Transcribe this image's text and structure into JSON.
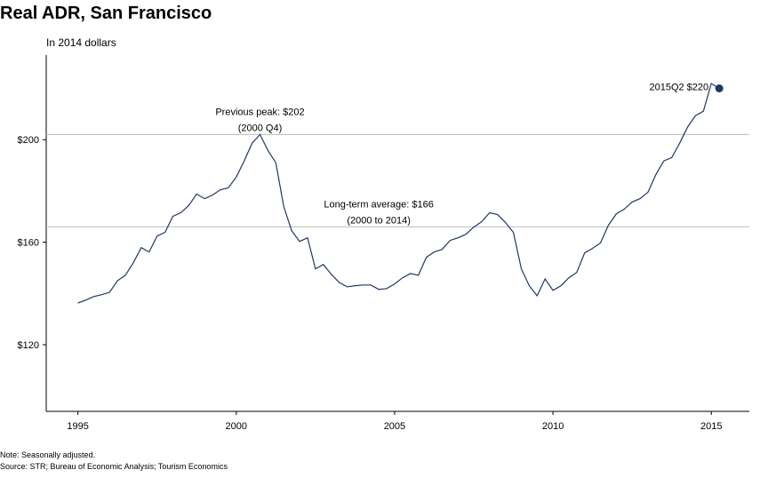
{
  "chart_data": {
    "type": "line",
    "title": "Real ADR, San Francisco",
    "subtitle": "In 2014 dollars",
    "notes": [
      "Note: Seasonally adjusted.",
      "Source: STR; Bureau of Economic Analysis; Tourism Economics"
    ],
    "x": [
      1995,
      1995.25,
      1995.5,
      1995.75,
      1996,
      1996.25,
      1996.5,
      1996.75,
      1997,
      1997.25,
      1997.5,
      1997.75,
      1998,
      1998.25,
      1998.5,
      1998.75,
      1999,
      1999.25,
      1999.5,
      1999.75,
      2000,
      2000.25,
      2000.5,
      2000.75,
      2001,
      2001.25,
      2001.5,
      2001.75,
      2002,
      2002.25,
      2002.5,
      2002.75,
      2003,
      2003.25,
      2003.5,
      2003.75,
      2004,
      2004.25,
      2004.5,
      2004.75,
      2005,
      2005.25,
      2005.5,
      2005.75,
      2006,
      2006.25,
      2006.5,
      2006.75,
      2007,
      2007.25,
      2007.5,
      2007.75,
      2008,
      2008.25,
      2008.5,
      2008.75,
      2009,
      2009.25,
      2009.5,
      2009.75,
      2010,
      2010.25,
      2010.5,
      2010.75,
      2011,
      2011.25,
      2011.5,
      2011.75,
      2012,
      2012.25,
      2012.5,
      2012.75,
      2013,
      2013.25,
      2013.5,
      2013.75,
      2014,
      2014.25,
      2014.5,
      2014.75,
      2015,
      2015.25
    ],
    "series": [
      {
        "name": "Real ADR",
        "color": "#1f3864",
        "values": [
          136.3,
          137.4,
          138.8,
          139.5,
          140.5,
          145,
          147.1,
          152,
          157.9,
          156.2,
          162.4,
          163.8,
          170.1,
          171.5,
          174.3,
          178.8,
          177,
          178.4,
          180.5,
          181.2,
          185.4,
          191.7,
          198.6,
          202,
          195.8,
          191,
          173.9,
          164.5,
          160.3,
          161.7,
          149.6,
          151.3,
          147.5,
          144.3,
          142.6,
          143,
          143.3,
          143.3,
          141.6,
          141.9,
          143.7,
          146.1,
          147.8,
          147.1,
          154.1,
          156.2,
          157.2,
          160.7,
          161.7,
          163.1,
          165.9,
          168,
          171.5,
          170.8,
          167.7,
          163.8,
          149.6,
          143,
          139.1,
          145.7,
          141.2,
          143,
          146.1,
          148.2,
          155.8,
          157.6,
          159.7,
          166.6,
          171.1,
          172.9,
          175.7,
          177,
          179.5,
          186.4,
          191.7,
          193,
          198.6,
          204.9,
          209.4,
          211.1,
          221.9,
          220
        ]
      }
    ],
    "highlight_last": true,
    "xlim": [
      1994,
      2016.2
    ],
    "ylim": [
      94,
      233
    ],
    "xticks": [
      1995,
      2000,
      2005,
      2010,
      2015
    ],
    "yticks": [
      {
        "value": 120,
        "label": "$120"
      },
      {
        "value": 160,
        "label": "$160"
      },
      {
        "value": 200,
        "label": "$200"
      }
    ],
    "reference_lines": [
      {
        "value": 202,
        "x": 2000.75,
        "lines": [
          "Previous peak: $202",
          "(2000 Q4)"
        ]
      },
      {
        "value": 166,
        "x": 2004.5,
        "lines": [
          "Long-term average: $166",
          "(2000 to 2014)"
        ]
      }
    ],
    "point_label": "2015Q2 $220",
    "grid": false
  }
}
